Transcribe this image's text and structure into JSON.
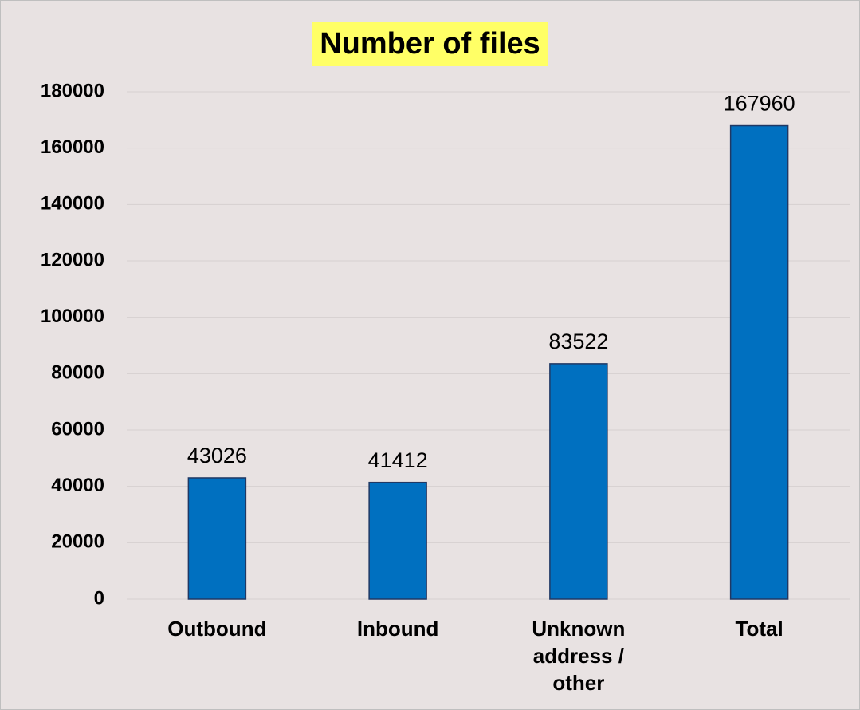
{
  "chart_data": {
    "type": "bar",
    "title": "Number of files",
    "categories": [
      "Outbound",
      "Inbound",
      "Unknown address / other",
      "Total"
    ],
    "values": [
      43026,
      41412,
      83522,
      167960
    ],
    "color": "#0070c0",
    "ylim": [
      0,
      180000
    ],
    "yticks": [
      0,
      20000,
      40000,
      60000,
      80000,
      100000,
      120000,
      140000,
      160000,
      180000
    ],
    "grid": true
  }
}
